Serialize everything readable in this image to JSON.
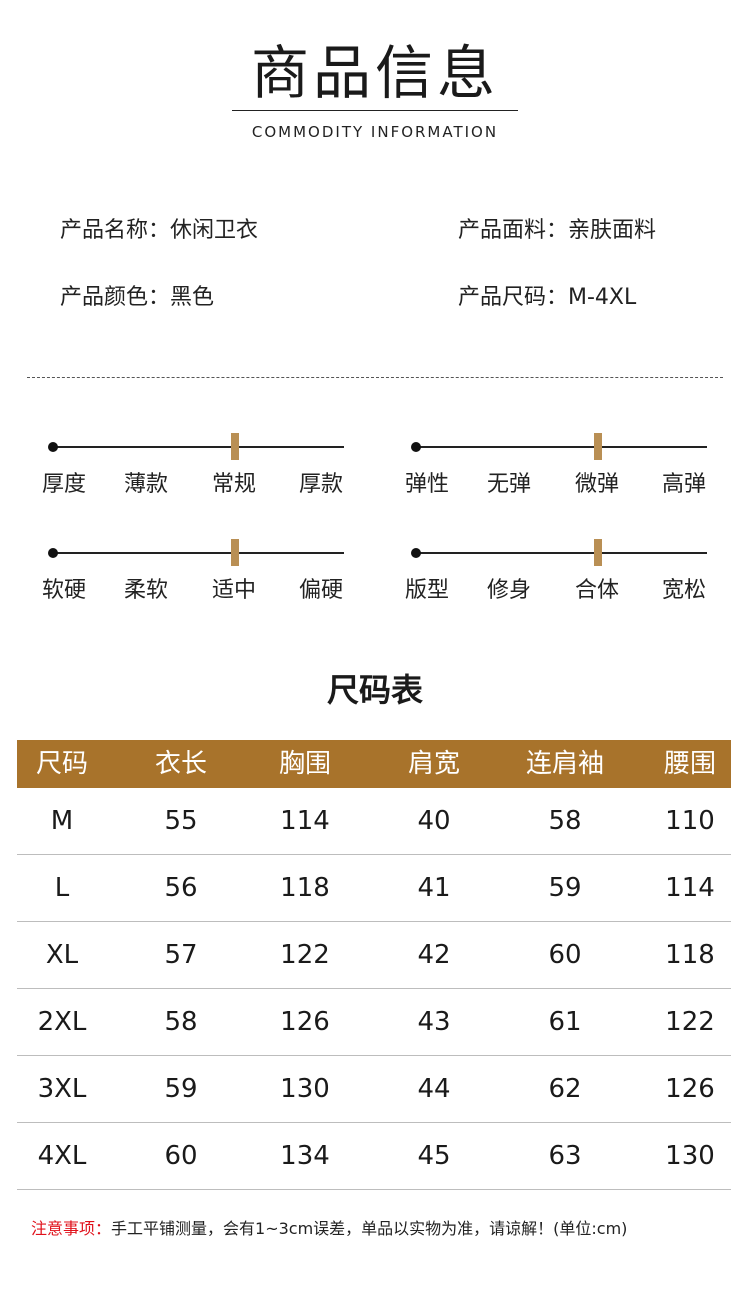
{
  "header": {
    "title": "商品信息",
    "subtitle": "COMMODITY INFORMATION"
  },
  "info": [
    {
      "label": "产品名称：",
      "value": "休闲卫衣"
    },
    {
      "label": "产品面料：",
      "value": "亲肤面料"
    },
    {
      "label": "产品颜色：",
      "value": "黑色"
    },
    {
      "label": "产品尺码：",
      "value": "M-4XL"
    }
  ],
  "scales": [
    {
      "name": "厚度",
      "options": [
        "薄款",
        "常规",
        "厚款"
      ],
      "selected": "常规"
    },
    {
      "name": "弹性",
      "options": [
        "无弹",
        "微弹",
        "高弹"
      ],
      "selected": "微弹"
    },
    {
      "name": "软硬",
      "options": [
        "柔软",
        "适中",
        "偏硬"
      ],
      "selected": "适中"
    },
    {
      "name": "版型",
      "options": [
        "修身",
        "合体",
        "宽松"
      ],
      "selected": "合体"
    }
  ],
  "size_chart": {
    "title": "尺码表",
    "headers": [
      "尺码",
      "衣长",
      "胸围",
      "肩宽",
      "连肩袖",
      "腰围"
    ],
    "rows": [
      [
        "M",
        "55",
        "114",
        "40",
        "58",
        "110"
      ],
      [
        "L",
        "56",
        "118",
        "41",
        "59",
        "114"
      ],
      [
        "XL",
        "57",
        "122",
        "42",
        "60",
        "118"
      ],
      [
        "2XL",
        "58",
        "126",
        "43",
        "61",
        "122"
      ],
      [
        "3XL",
        "59",
        "130",
        "44",
        "62",
        "126"
      ],
      [
        "4XL",
        "60",
        "134",
        "45",
        "63",
        "130"
      ]
    ],
    "header_color": "#a8732b"
  },
  "note": {
    "label": "注意事项：",
    "text": "手工平铺测量，会有1~3cm误差，单品以实物为准，请谅解！(单位:cm)"
  },
  "colors": {
    "accent": "#a8732b",
    "marker": "#b98f54",
    "note_label": "#e0101a"
  }
}
